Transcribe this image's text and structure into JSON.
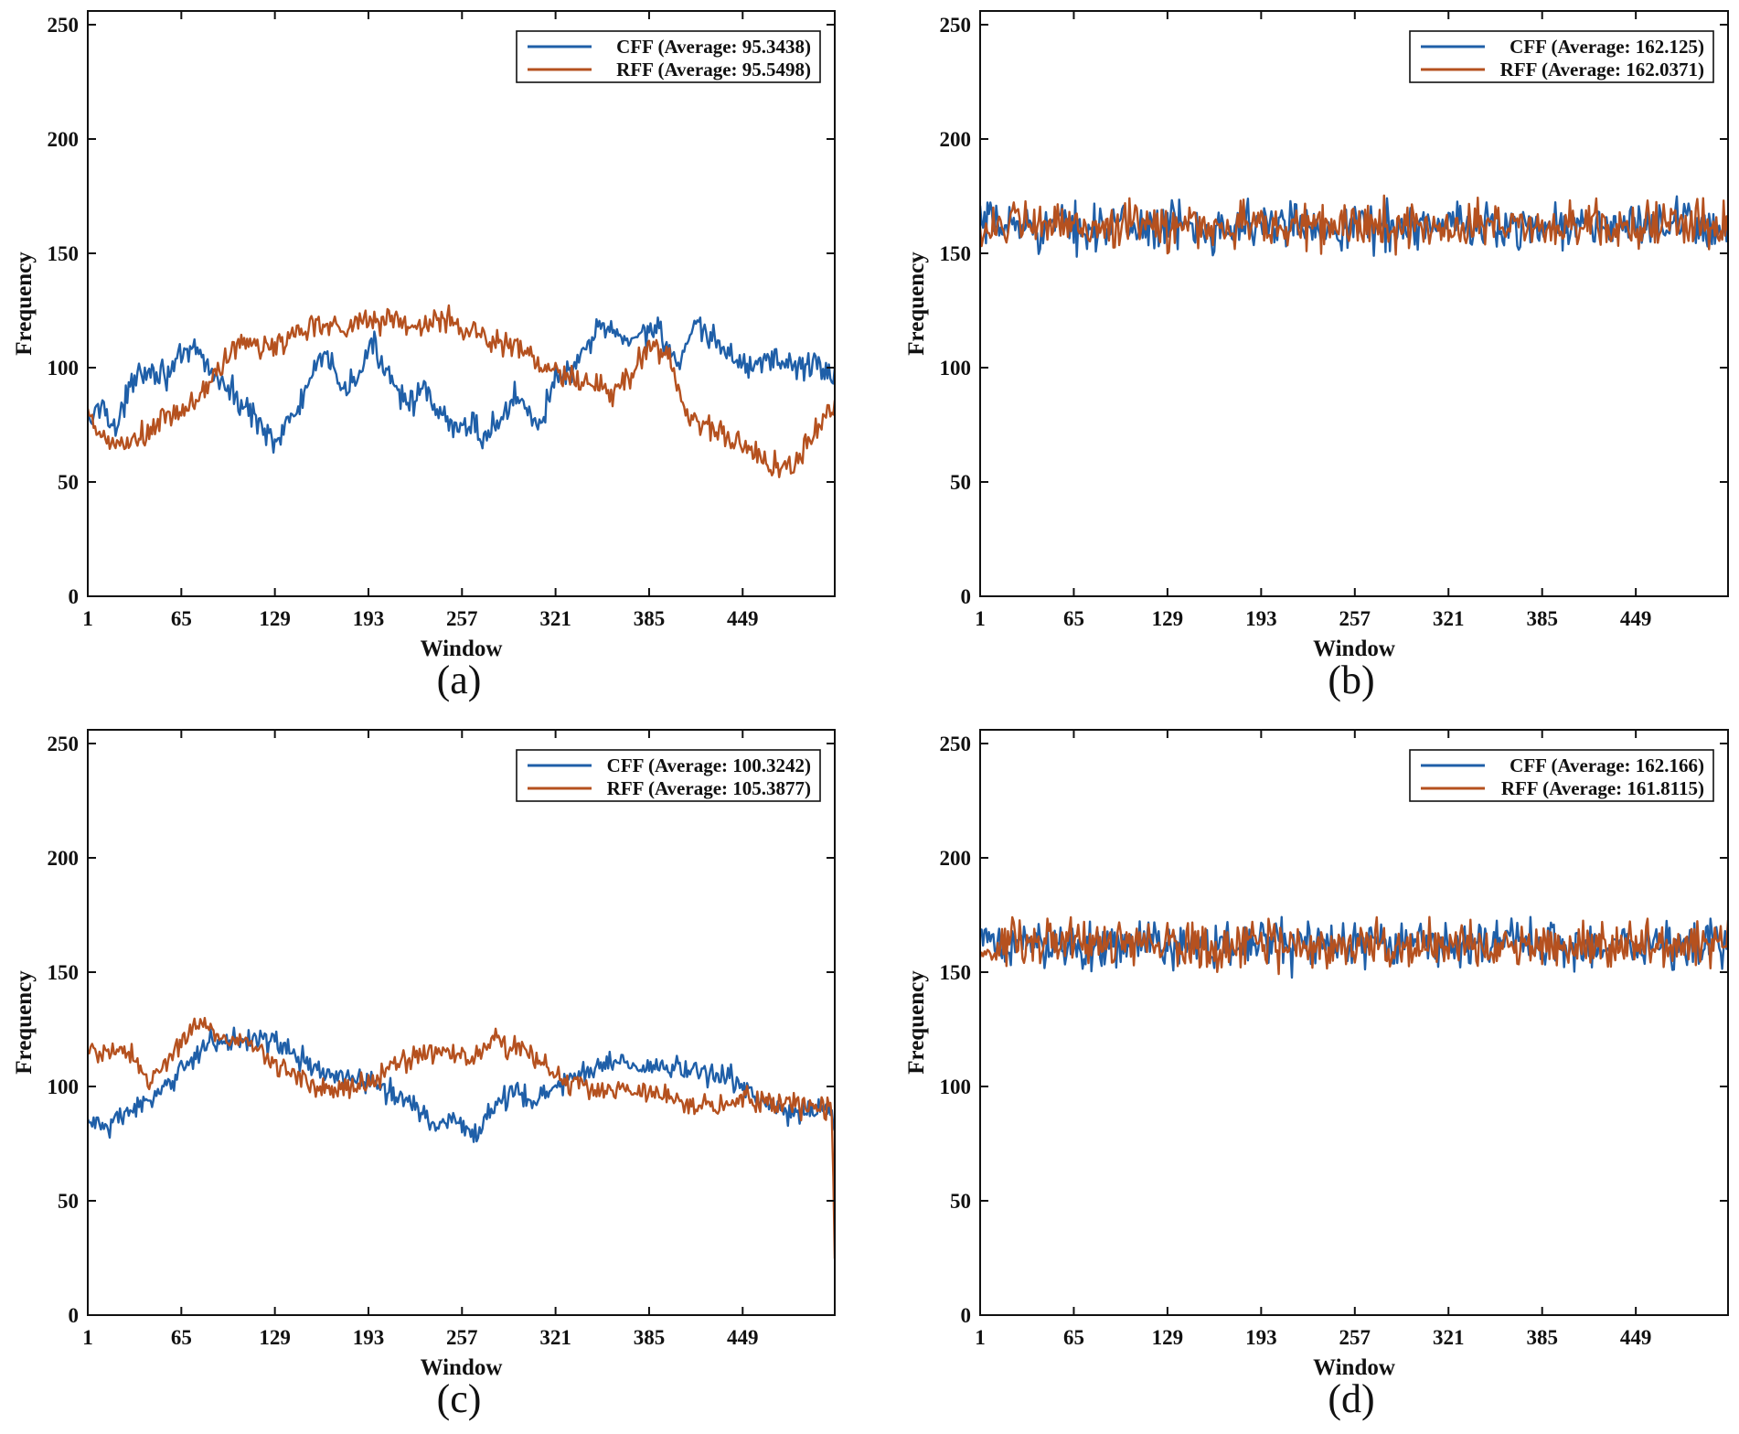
{
  "chart_data": [
    {
      "type": "line",
      "panel": "(a)",
      "xlabel": "Window",
      "ylabel": "Frequency",
      "xticks": [
        1,
        65,
        129,
        193,
        257,
        321,
        385,
        449
      ],
      "yticks": [
        0,
        50,
        100,
        150,
        200,
        250
      ],
      "xlim": [
        1,
        512
      ],
      "ylim": [
        0,
        256
      ],
      "legend": "top-right",
      "grid": false,
      "series": [
        {
          "name": "CFF (Average: 95.3438)",
          "color": "#1f5fa8",
          "noise": 3,
          "knots": [
            [
              1,
              75
            ],
            [
              12,
              85
            ],
            [
              20,
              72
            ],
            [
              35,
              100
            ],
            [
              55,
              98
            ],
            [
              75,
              108
            ],
            [
              90,
              95
            ],
            [
              105,
              85
            ],
            [
              120,
              75
            ],
            [
              130,
              68
            ],
            [
              145,
              82
            ],
            [
              155,
              98
            ],
            [
              165,
              104
            ],
            [
              178,
              90
            ],
            [
              185,
              95
            ],
            [
              195,
              110
            ],
            [
              210,
              95
            ],
            [
              220,
              85
            ],
            [
              230,
              90
            ],
            [
              240,
              80
            ],
            [
              255,
              72
            ],
            [
              265,
              78
            ],
            [
              270,
              68
            ],
            [
              280,
              75
            ],
            [
              295,
              88
            ],
            [
              310,
              75
            ],
            [
              321,
              95
            ],
            [
              335,
              100
            ],
            [
              345,
              110
            ],
            [
              352,
              120
            ],
            [
              365,
              112
            ],
            [
              380,
              115
            ],
            [
              392,
              118
            ],
            [
              405,
              100
            ],
            [
              418,
              118
            ],
            [
              428,
              112
            ],
            [
              440,
              106
            ],
            [
              455,
              100
            ],
            [
              470,
              105
            ],
            [
              485,
              100
            ],
            [
              500,
              102
            ],
            [
              512,
              95
            ]
          ]
        },
        {
          "name": "RFF (Average: 95.5498)",
          "color": "#b5511f",
          "noise": 3,
          "knots": [
            [
              1,
              78
            ],
            [
              12,
              68
            ],
            [
              25,
              66
            ],
            [
              40,
              70
            ],
            [
              55,
              78
            ],
            [
              70,
              82
            ],
            [
              80,
              90
            ],
            [
              92,
              100
            ],
            [
              105,
              112
            ],
            [
              118,
              108
            ],
            [
              130,
              110
            ],
            [
              145,
              116
            ],
            [
              160,
              120
            ],
            [
              175,
              118
            ],
            [
              192,
              120
            ],
            [
              205,
              122
            ],
            [
              220,
              118
            ],
            [
              238,
              120
            ],
            [
              252,
              120
            ],
            [
              270,
              114
            ],
            [
              285,
              110
            ],
            [
              300,
              108
            ],
            [
              315,
              98
            ],
            [
              330,
              96
            ],
            [
              345,
              92
            ],
            [
              358,
              88
            ],
            [
              370,
              95
            ],
            [
              385,
              110
            ],
            [
              398,
              106
            ],
            [
              410,
              80
            ],
            [
              425,
              75
            ],
            [
              440,
              68
            ],
            [
              455,
              64
            ],
            [
              470,
              58
            ],
            [
              482,
              56
            ],
            [
              495,
              68
            ],
            [
              505,
              78
            ],
            [
              512,
              82
            ]
          ]
        }
      ]
    },
    {
      "type": "line",
      "panel": "(b)",
      "xlabel": "Window",
      "ylabel": "Frequency",
      "xticks": [
        1,
        65,
        129,
        193,
        257,
        321,
        385,
        449
      ],
      "yticks": [
        0,
        50,
        100,
        150,
        200,
        250
      ],
      "xlim": [
        1,
        512
      ],
      "ylim": [
        0,
        256
      ],
      "legend": "top-right",
      "grid": false,
      "series": [
        {
          "name": "CFF (Average: 162.125)",
          "color": "#1f5fa8",
          "noise": 5,
          "knots": [
            [
              1,
              162
            ],
            [
              512,
              162
            ]
          ]
        },
        {
          "name": "RFF (Average: 162.0371)",
          "color": "#b5511f",
          "noise": 5,
          "knots": [
            [
              1,
              162
            ],
            [
              512,
              162
            ]
          ]
        }
      ]
    },
    {
      "type": "line",
      "panel": "(c)",
      "xlabel": "Window",
      "ylabel": "Frequency",
      "xticks": [
        1,
        65,
        129,
        193,
        257,
        321,
        385,
        449
      ],
      "yticks": [
        0,
        50,
        100,
        150,
        200,
        250
      ],
      "xlim": [
        1,
        512
      ],
      "ylim": [
        0,
        256
      ],
      "legend": "top-right",
      "grid": false,
      "series": [
        {
          "name": "CFF (Average: 100.3242)",
          "color": "#1f5fa8",
          "noise": 2.5,
          "knots": [
            [
              1,
              85
            ],
            [
              15,
              82
            ],
            [
              30,
              90
            ],
            [
              50,
              95
            ],
            [
              65,
              108
            ],
            [
              80,
              118
            ],
            [
              100,
              120
            ],
            [
              120,
              122
            ],
            [
              140,
              115
            ],
            [
              160,
              106
            ],
            [
              180,
              104
            ],
            [
              200,
              100
            ],
            [
              225,
              92
            ],
            [
              240,
              82
            ],
            [
              252,
              88
            ],
            [
              262,
              78
            ],
            [
              270,
              82
            ],
            [
              282,
              95
            ],
            [
              295,
              98
            ],
            [
              305,
              92
            ],
            [
              321,
              100
            ],
            [
              340,
              106
            ],
            [
              360,
              112
            ],
            [
              380,
              108
            ],
            [
              400,
              108
            ],
            [
              420,
              106
            ],
            [
              440,
              105
            ],
            [
              455,
              96
            ],
            [
              470,
              90
            ],
            [
              485,
              88
            ],
            [
              500,
              90
            ],
            [
              510,
              90
            ],
            [
              512,
              85
            ]
          ]
        },
        {
          "name": "RFF (Average: 105.3877)",
          "color": "#b5511f",
          "noise": 2.5,
          "knots": [
            [
              1,
              115
            ],
            [
              20,
              116
            ],
            [
              33,
              112
            ],
            [
              42,
              100
            ],
            [
              55,
              112
            ],
            [
              68,
              122
            ],
            [
              78,
              128
            ],
            [
              88,
              124
            ],
            [
              100,
              120
            ],
            [
              115,
              118
            ],
            [
              128,
              110
            ],
            [
              145,
              105
            ],
            [
              160,
              100
            ],
            [
              180,
              100
            ],
            [
              193,
              102
            ],
            [
              210,
              108
            ],
            [
              230,
              115
            ],
            [
              250,
              115
            ],
            [
              265,
              112
            ],
            [
              280,
              120
            ],
            [
              300,
              115
            ],
            [
              321,
              105
            ],
            [
              340,
              100
            ],
            [
              360,
              98
            ],
            [
              385,
              97
            ],
            [
              410,
              92
            ],
            [
              430,
              92
            ],
            [
              450,
              94
            ],
            [
              470,
              92
            ],
            [
              490,
              92
            ],
            [
              505,
              92
            ],
            [
              510,
              90
            ],
            [
              511,
              60
            ],
            [
              512,
              30
            ]
          ]
        }
      ]
    },
    {
      "type": "line",
      "panel": "(d)",
      "xlabel": "Window",
      "ylabel": "Frequency",
      "xticks": [
        1,
        65,
        129,
        193,
        257,
        321,
        385,
        449
      ],
      "yticks": [
        0,
        50,
        100,
        150,
        200,
        250
      ],
      "xlim": [
        1,
        512
      ],
      "ylim": [
        0,
        256
      ],
      "legend": "top-right",
      "grid": false,
      "series": [
        {
          "name": "CFF (Average: 162.166)",
          "color": "#1f5fa8",
          "noise": 5,
          "knots": [
            [
              1,
              162
            ],
            [
              512,
              162
            ]
          ]
        },
        {
          "name": "RFF (Average: 161.8115)",
          "color": "#b5511f",
          "noise": 5,
          "knots": [
            [
              1,
              162
            ],
            [
              512,
              162
            ]
          ]
        }
      ]
    }
  ]
}
